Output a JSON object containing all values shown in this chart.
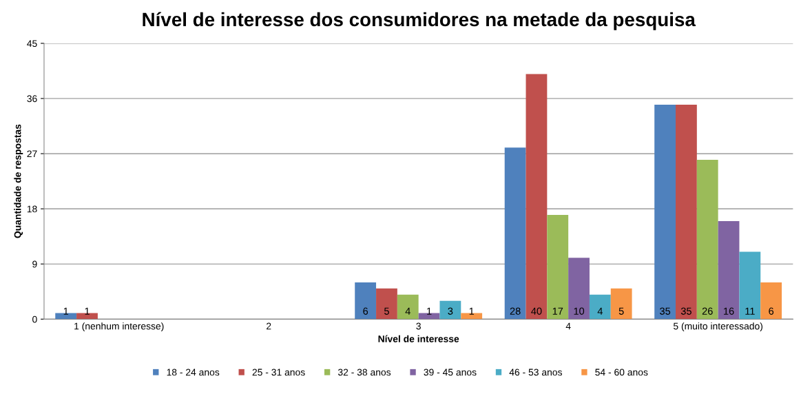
{
  "chart_data": {
    "type": "bar",
    "title": "Nível de interesse dos consumidores na metade da pesquisa",
    "xlabel": "Nível de interesse",
    "ylabel": "Quantidade de respostas",
    "categories": [
      "1 (nenhum interesse)",
      "2",
      "3",
      "4",
      "5 (muito interessado)"
    ],
    "series": [
      {
        "name": "18 - 24 anos",
        "color": "#4f81bd",
        "values": [
          1,
          0,
          6,
          28,
          35
        ],
        "value_labels": [
          "1",
          null,
          "6",
          "28",
          "35"
        ]
      },
      {
        "name": "25 - 31 anos",
        "color": "#c0504d",
        "values": [
          1,
          0,
          5,
          40,
          35
        ],
        "value_labels": [
          "1",
          null,
          "5",
          "40",
          "35"
        ]
      },
      {
        "name": "32 - 38 anos",
        "color": "#9bbb59",
        "values": [
          0,
          0,
          4,
          17,
          26
        ],
        "value_labels": [
          null,
          null,
          "4",
          "17",
          "26"
        ]
      },
      {
        "name": "39 - 45 anos",
        "color": "#8064a2",
        "values": [
          0,
          0,
          1,
          10,
          16
        ],
        "value_labels": [
          null,
          null,
          "1",
          "10",
          "16"
        ]
      },
      {
        "name": "46 - 53 anos",
        "color": "#4bacc6",
        "values": [
          0,
          0,
          3,
          4,
          11
        ],
        "value_labels": [
          null,
          null,
          "3",
          "4",
          "11"
        ]
      },
      {
        "name": "54 - 60 anos",
        "color": "#f79646",
        "values": [
          0,
          0,
          1,
          5,
          6
        ],
        "value_labels": [
          null,
          null,
          "1",
          "5",
          "6"
        ]
      }
    ],
    "ylim": [
      0,
      45
    ],
    "yticks": [
      0,
      9,
      18,
      27,
      36,
      45
    ],
    "grid": "y",
    "legend": "bottom"
  }
}
